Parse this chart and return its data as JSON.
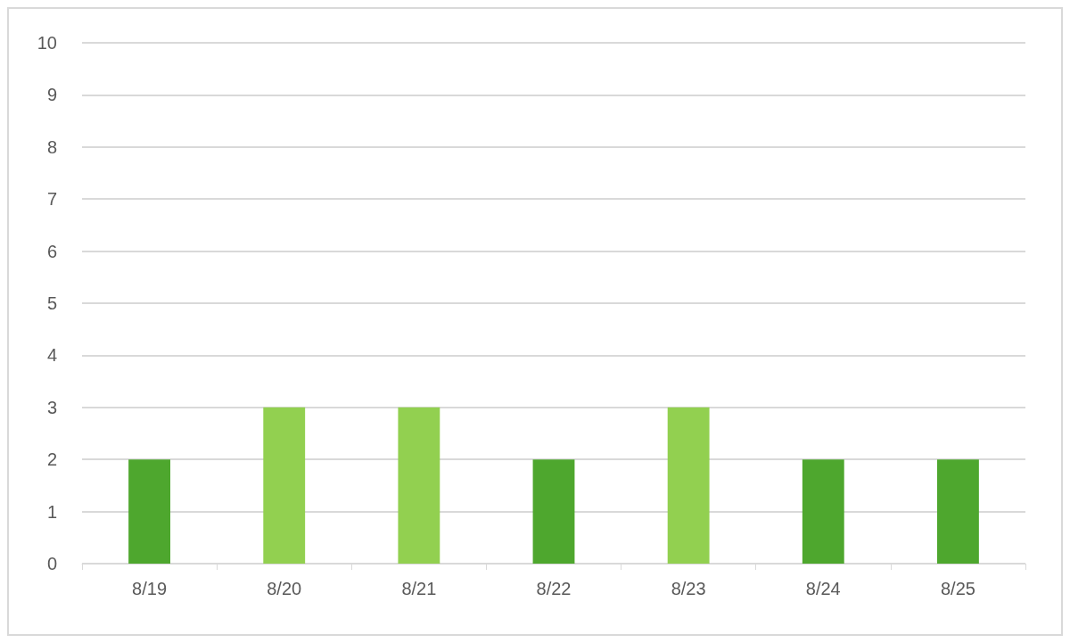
{
  "chart_data": {
    "type": "bar",
    "categories": [
      "8/19",
      "8/20",
      "8/21",
      "8/22",
      "8/23",
      "8/24",
      "8/25"
    ],
    "values": [
      2,
      3,
      3,
      2,
      3,
      2,
      2
    ],
    "colors": [
      "#4ea72e",
      "#92d050",
      "#92d050",
      "#4ea72e",
      "#92d050",
      "#4ea72e",
      "#4ea72e"
    ],
    "ylim": [
      0,
      10
    ],
    "yticks": [
      0,
      1,
      2,
      3,
      4,
      5,
      6,
      7,
      8,
      9,
      10
    ],
    "grid": "y"
  }
}
